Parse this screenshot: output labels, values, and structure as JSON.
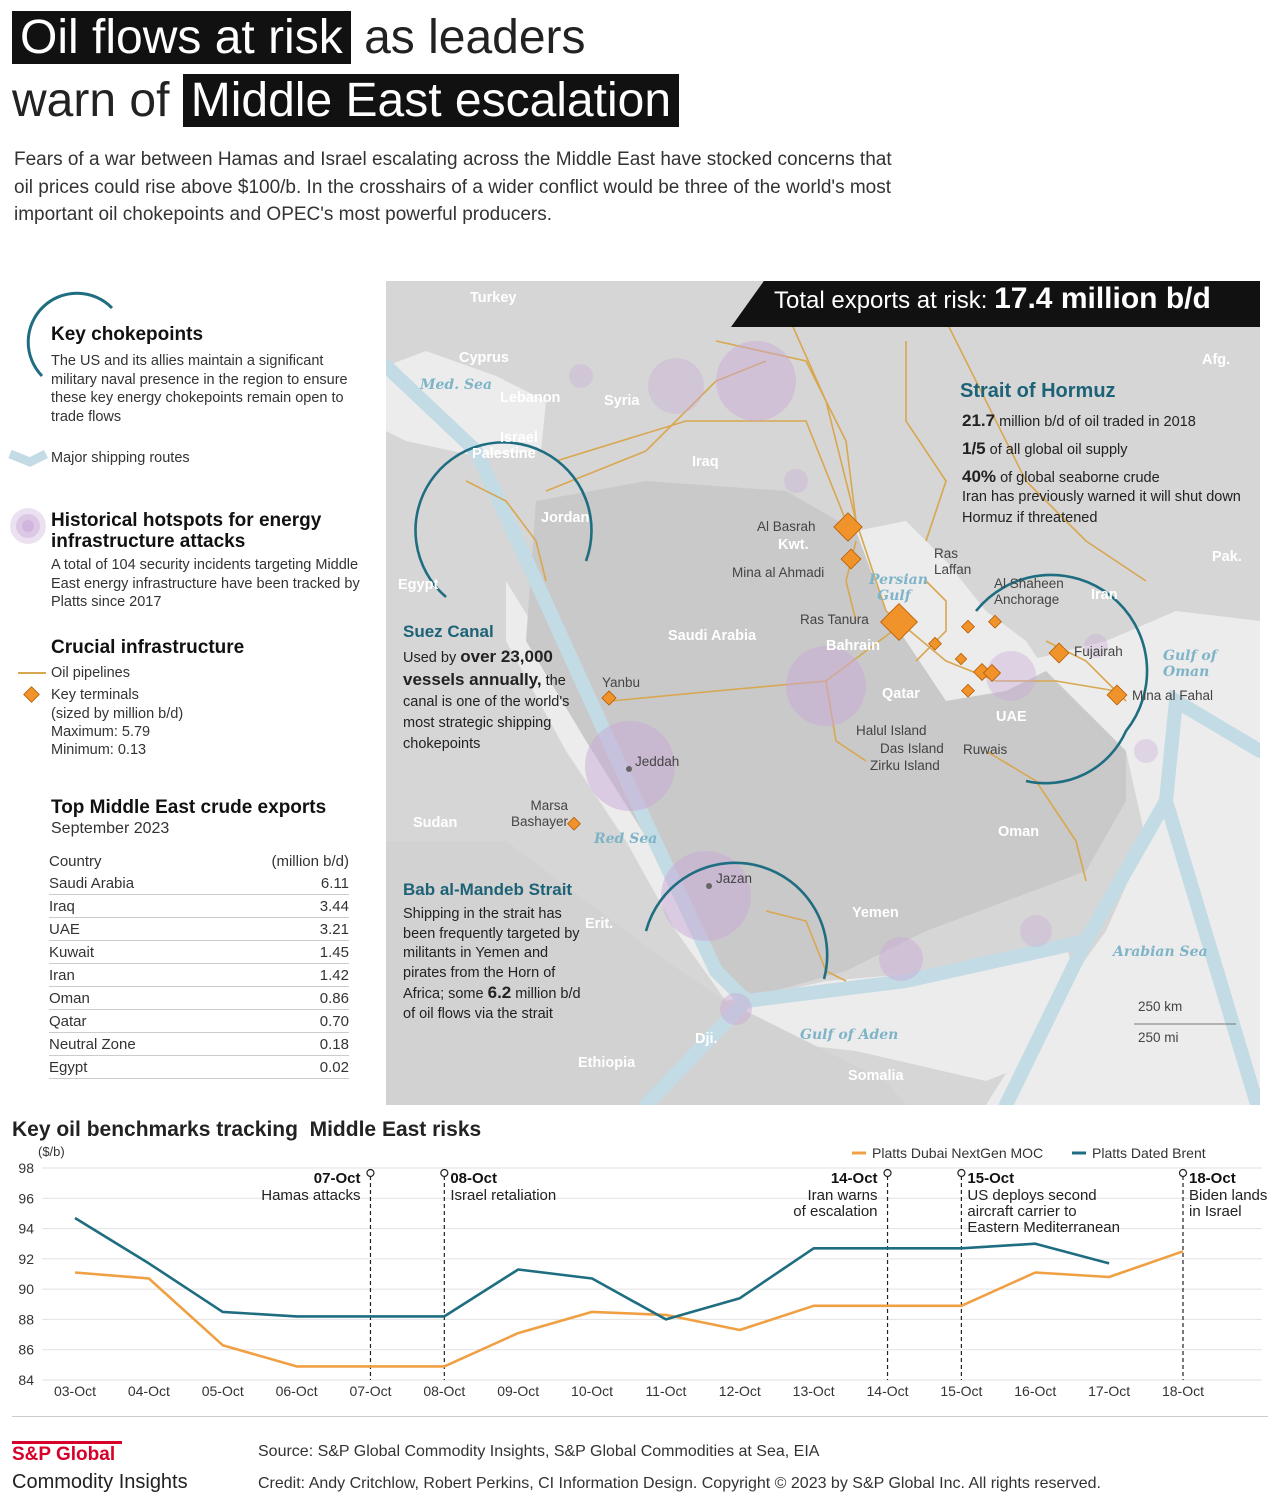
{
  "title": {
    "line1_highlight": "Oil flows at risk",
    "line1_rest": "as leaders",
    "line2_rest": "warn of",
    "line2_highlight": "Middle East escalation"
  },
  "intro": "Fears of a war between Hamas and Israel escalating across the Middle East have stocked concerns that oil prices could rise above $100/b. In the crosshairs of a wider conflict would be three of the world's most important oil chokepoints and OPEC's most powerful producers.",
  "legend": {
    "chokepoints_heading": "Key chokepoints",
    "chokepoints_text": "The US and its allies maintain a significant military naval presence in the region to ensure these key energy chokepoints remain open to trade flows",
    "shipping_routes": "Major shipping routes",
    "hotspots_heading": "Historical hotspots for energy infrastructure attacks",
    "hotspots_text": "A total of 104 security incidents targeting Middle East energy infrastructure have been tracked by Platts since 2017",
    "infra_heading": "Crucial infrastructure",
    "pipelines": "Oil pipelines",
    "terminals": "Key terminals",
    "terminals_note": "(sized by million b/d)",
    "maximum": "Maximum: 5.79",
    "minimum": "Minimum: 0.13"
  },
  "exports_table": {
    "heading": "Top Middle East crude exports",
    "subheading": "September 2023",
    "col_country": "Country",
    "col_value": "(million b/d)",
    "rows": [
      {
        "country": "Saudi Arabia",
        "value": "6.11"
      },
      {
        "country": "Iraq",
        "value": "3.44"
      },
      {
        "country": "UAE",
        "value": "3.21"
      },
      {
        "country": "Kuwait",
        "value": "1.45"
      },
      {
        "country": "Iran",
        "value": "1.42"
      },
      {
        "country": "Oman",
        "value": "0.86"
      },
      {
        "country": "Qatar",
        "value": "0.70"
      },
      {
        "country": "Neutral Zone",
        "value": "0.18"
      },
      {
        "country": "Egypt",
        "value": "0.02"
      }
    ]
  },
  "map": {
    "banner_label": "Total exports at risk:",
    "banner_value": "17.4 million b/d",
    "countries": {
      "turkey": "Turkey",
      "cyprus": "Cyprus",
      "lebanon": "Lebanon",
      "syria": "Syria",
      "israel": "Israel",
      "palestine": "Palestine",
      "jordan": "Jordan",
      "iraq": "Iraq",
      "egypt": "Egypt",
      "kwt": "Kwt.",
      "saudi": "Saudi Arabia",
      "bahrain": "Bahrain",
      "qatar": "Qatar",
      "uae": "UAE",
      "iran": "Iran",
      "afg": "Afg.",
      "pak": "Pak.",
      "oman": "Oman",
      "yemen": "Yemen",
      "sudan": "Sudan",
      "erit": "Erit.",
      "dji": "Dji.",
      "ethiopia": "Ethiopia",
      "somalia": "Somalia"
    },
    "seas": {
      "med": "Med. Sea",
      "persian_gulf": "Persian Gulf",
      "red_sea": "Red Sea",
      "gulf_oman": "Gulf of Oman",
      "gulf_aden": "Gulf of Aden",
      "arabian_sea": "Arabian Sea"
    },
    "cities": {
      "basrah": "Al Basrah",
      "ahmadi": "Mina al Ahmadi",
      "ras_tanura": "Ras Tanura",
      "ras_laffan": "Ras Laffan",
      "al_shaheen": "Al Shaheen Anchorage",
      "fujairah": "Fujairah",
      "mina_fahal": "Mina al Fahal",
      "halul": "Halul Island",
      "das": "Das Island",
      "zirku": "Zirku Island",
      "ruwais": "Ruwais",
      "yanbu": "Yanbu",
      "jeddah": "Jeddah",
      "marsa": "Marsa Bashayer",
      "jazan": "Jazan"
    },
    "hormuz": {
      "heading": "Strait of Hormuz",
      "l1_value": "21.7",
      "l1_text": "million b/d of oil traded in 2018",
      "l2_value": "1/5",
      "l2_text": "of all global oil supply",
      "l3_value": "40%",
      "l3_text": "of global seaborne crude",
      "note": "Iran has previously warned it will shut down Hormuz if threatened"
    },
    "suez": {
      "heading": "Suez Canal",
      "pre": "Used by",
      "value": "over 23,000 vessels annually,",
      "rest": "the canal is one of the world's most strategic shipping chokepoints"
    },
    "bab": {
      "heading": "Bab al-Mandeb Strait",
      "pre": "Shipping in the strait has been frequently targeted by militants in Yemen and pirates from the Horn of Africa; some",
      "value": "6.2",
      "rest": "million b/d of oil flows via the strait"
    },
    "scale_km": "250 km",
    "scale_mi": "250 mi"
  },
  "line_chart": {
    "heading": "Key oil benchmarks tracking  Middle East risks",
    "events": [
      {
        "date": "07-Oct",
        "text": [
          "Hamas attacks"
        ],
        "align": "end"
      },
      {
        "date": "08-Oct",
        "text": [
          "Israel retaliation"
        ],
        "align": "start"
      },
      {
        "date": "14-Oct",
        "text": [
          "Iran warns",
          "of escalation"
        ],
        "align": "end"
      },
      {
        "date": "15-Oct",
        "text": [
          "US deploys second",
          "aircraft carrier to",
          "Eastern Mediterranean"
        ],
        "align": "start"
      },
      {
        "date": "18-Oct",
        "text": [
          "Biden lands",
          "in Israel"
        ],
        "align": "start"
      }
    ]
  },
  "chart_data": {
    "type": "line",
    "title": "Key oil benchmarks tracking  Middle East risks",
    "ylabel": "($/b)",
    "xlabel": "",
    "ylim": [
      84,
      98
    ],
    "yticks": [
      84,
      86,
      88,
      90,
      92,
      94,
      96,
      98
    ],
    "legend_position": "top-right",
    "grid": true,
    "categories": [
      "03-Oct",
      "04-Oct",
      "05-Oct",
      "06-Oct",
      "07-Oct",
      "08-Oct",
      "09-Oct",
      "10-Oct",
      "11-Oct",
      "12-Oct",
      "13-Oct",
      "14-Oct",
      "15-Oct",
      "16-Oct",
      "17-Oct",
      "18-Oct"
    ],
    "series": [
      {
        "name": "Platts Dubai NextGen MOC",
        "color": "#f0a043",
        "values": [
          91.1,
          90.7,
          86.3,
          84.9,
          84.9,
          84.9,
          87.1,
          88.5,
          88.3,
          87.3,
          88.9,
          88.9,
          88.9,
          91.1,
          90.8,
          92.5
        ]
      },
      {
        "name": "Platts Dated Brent",
        "color": "#1f6d80",
        "values": [
          94.7,
          91.7,
          88.5,
          88.2,
          88.2,
          88.2,
          91.3,
          90.7,
          88.0,
          89.4,
          92.7,
          92.7,
          92.7,
          93.0,
          91.7,
          null
        ]
      }
    ]
  },
  "footer": {
    "logo_line1": "S&P Global",
    "logo_line2": "Commodity Insights",
    "source": "Source: S&P Global Commodity Insights, S&P Global Commodities at Sea, EIA",
    "credit": "Credit: Andy Critchlow, Robert Perkins, CI Information Design.  Copyright © 2023 by S&P Global Inc. All rights reserved."
  },
  "colors": {
    "dubai": "#f0a043",
    "brent": "#1f6d80",
    "teal_heading": "#1d6277",
    "pipeline": "#d8a750",
    "terminal": "#f0932b",
    "hotspot": "#c9a9d8",
    "route": "#c2dbe5",
    "map_bg": "#dcdcdc"
  }
}
